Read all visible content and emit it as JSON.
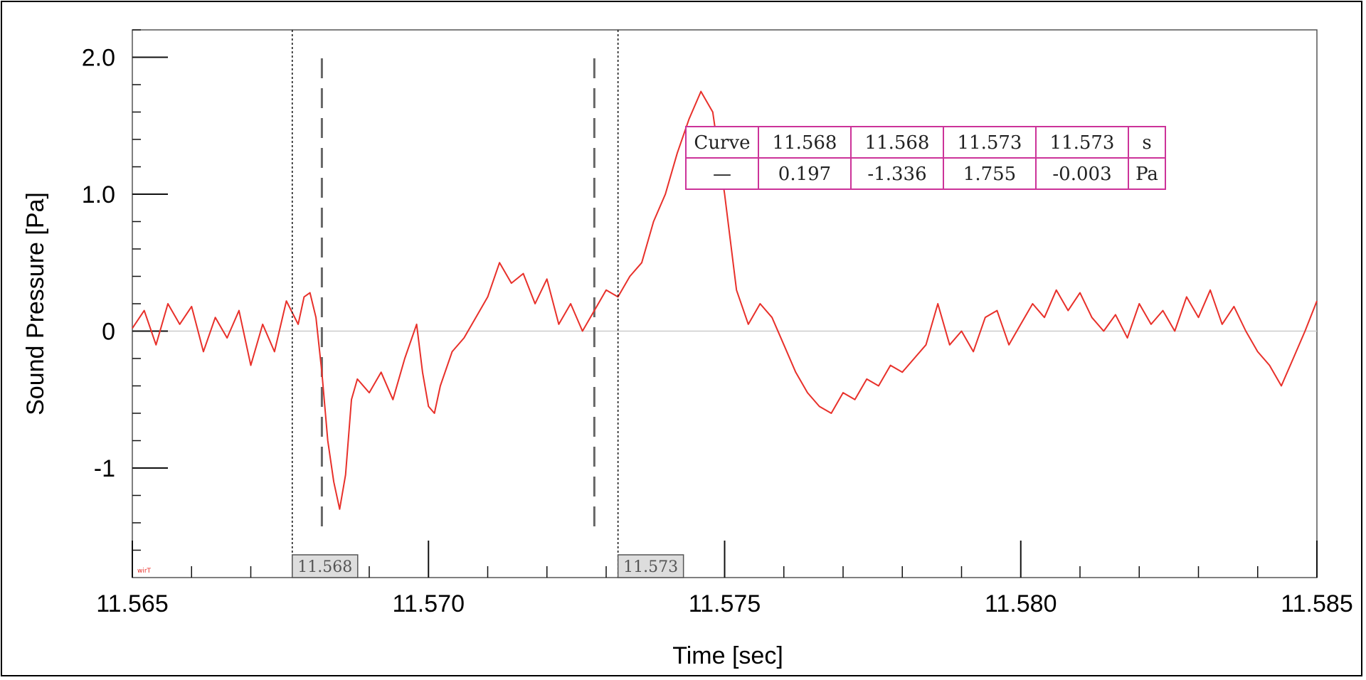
{
  "chart_data": {
    "type": "line",
    "title": "",
    "xlabel": "Time [sec]",
    "ylabel": "Sound Pressure [Pa]",
    "xlim": [
      11.565,
      11.585
    ],
    "ylim": [
      -1.8,
      2.2
    ],
    "x_tick_labels": [
      {
        "value": 11.565,
        "label": "11.565"
      },
      {
        "value": 11.57,
        "label": "11.570"
      },
      {
        "value": 11.575,
        "label": "11.575"
      },
      {
        "value": 11.58,
        "label": "11.580"
      },
      {
        "value": 11.585,
        "label": "11.585"
      }
    ],
    "y_tick_labels": [
      {
        "value": 2.0,
        "label": "2.0"
      },
      {
        "value": 1.0,
        "label": "1.0"
      },
      {
        "value": 0,
        "label": "0"
      },
      {
        "value": -1,
        "label": "-1"
      }
    ],
    "grid": false,
    "zero_line": true,
    "line_color": "#e8302a",
    "series": [
      {
        "color": "#e8302a",
        "points": [
          [
            11.565,
            0.02
          ],
          [
            11.5652,
            0.15
          ],
          [
            11.5654,
            -0.1
          ],
          [
            11.5656,
            0.2
          ],
          [
            11.5658,
            0.05
          ],
          [
            11.566,
            0.18
          ],
          [
            11.5662,
            -0.15
          ],
          [
            11.5664,
            0.1
          ],
          [
            11.5666,
            -0.05
          ],
          [
            11.5668,
            0.15
          ],
          [
            11.567,
            -0.25
          ],
          [
            11.5672,
            0.05
          ],
          [
            11.5674,
            -0.15
          ],
          [
            11.5676,
            0.22
          ],
          [
            11.5678,
            0.05
          ],
          [
            11.5679,
            0.25
          ],
          [
            11.568,
            0.28
          ],
          [
            11.5681,
            0.1
          ],
          [
            11.5682,
            -0.3
          ],
          [
            11.5683,
            -0.8
          ],
          [
            11.5684,
            -1.1
          ],
          [
            11.5685,
            -1.3
          ],
          [
            11.5686,
            -1.05
          ],
          [
            11.5687,
            -0.5
          ],
          [
            11.5688,
            -0.35
          ],
          [
            11.569,
            -0.45
          ],
          [
            11.5692,
            -0.3
          ],
          [
            11.5694,
            -0.5
          ],
          [
            11.5696,
            -0.2
          ],
          [
            11.5698,
            0.05
          ],
          [
            11.5699,
            -0.3
          ],
          [
            11.57,
            -0.55
          ],
          [
            11.5701,
            -0.6
          ],
          [
            11.5702,
            -0.4
          ],
          [
            11.5704,
            -0.15
          ],
          [
            11.5706,
            -0.05
          ],
          [
            11.5708,
            0.1
          ],
          [
            11.571,
            0.25
          ],
          [
            11.5712,
            0.5
          ],
          [
            11.5714,
            0.35
          ],
          [
            11.5716,
            0.42
          ],
          [
            11.5718,
            0.2
          ],
          [
            11.572,
            0.38
          ],
          [
            11.5722,
            0.05
          ],
          [
            11.5724,
            0.2
          ],
          [
            11.5726,
            0.0
          ],
          [
            11.5728,
            0.15
          ],
          [
            11.573,
            0.3
          ],
          [
            11.5732,
            0.25
          ],
          [
            11.5734,
            0.4
          ],
          [
            11.5736,
            0.5
          ],
          [
            11.5738,
            0.8
          ],
          [
            11.574,
            1.0
          ],
          [
            11.5742,
            1.3
          ],
          [
            11.5744,
            1.55
          ],
          [
            11.5746,
            1.75
          ],
          [
            11.5748,
            1.6
          ],
          [
            11.575,
            1.0
          ],
          [
            11.5752,
            0.3
          ],
          [
            11.5754,
            0.05
          ],
          [
            11.5756,
            0.2
          ],
          [
            11.5758,
            0.1
          ],
          [
            11.576,
            -0.1
          ],
          [
            11.5762,
            -0.3
          ],
          [
            11.5764,
            -0.45
          ],
          [
            11.5766,
            -0.55
          ],
          [
            11.5768,
            -0.6
          ],
          [
            11.577,
            -0.45
          ],
          [
            11.5772,
            -0.5
          ],
          [
            11.5774,
            -0.35
          ],
          [
            11.5776,
            -0.4
          ],
          [
            11.5778,
            -0.25
          ],
          [
            11.578,
            -0.3
          ],
          [
            11.5782,
            -0.2
          ],
          [
            11.5784,
            -0.1
          ],
          [
            11.5786,
            0.2
          ],
          [
            11.5788,
            -0.1
          ],
          [
            11.579,
            0.0
          ],
          [
            11.5792,
            -0.15
          ],
          [
            11.5794,
            0.1
          ],
          [
            11.5796,
            0.15
          ],
          [
            11.5798,
            -0.1
          ],
          [
            11.58,
            0.05
          ],
          [
            11.5802,
            0.2
          ],
          [
            11.5804,
            0.1
          ],
          [
            11.5806,
            0.3
          ],
          [
            11.5808,
            0.15
          ],
          [
            11.581,
            0.28
          ],
          [
            11.5812,
            0.1
          ],
          [
            11.5814,
            0.0
          ],
          [
            11.5816,
            0.12
          ],
          [
            11.5818,
            -0.05
          ],
          [
            11.582,
            0.2
          ],
          [
            11.5822,
            0.05
          ],
          [
            11.5824,
            0.15
          ],
          [
            11.5826,
            0.0
          ],
          [
            11.5828,
            0.25
          ],
          [
            11.583,
            0.1
          ],
          [
            11.5832,
            0.3
          ],
          [
            11.5834,
            0.05
          ],
          [
            11.5836,
            0.18
          ],
          [
            11.5838,
            0.0
          ],
          [
            11.584,
            -0.15
          ],
          [
            11.5842,
            -0.25
          ],
          [
            11.5844,
            -0.4
          ],
          [
            11.5846,
            -0.2
          ],
          [
            11.5848,
            0.0
          ],
          [
            11.585,
            0.22
          ]
        ]
      }
    ],
    "reference_markers": [
      {
        "x": 11.5682,
        "style": "dashed"
      },
      {
        "x": 11.5728,
        "style": "dashed"
      }
    ],
    "cursors": [
      {
        "x": 11.5677,
        "label": "11.568"
      },
      {
        "x": 11.5732,
        "label": "11.573"
      }
    ],
    "readout_table": {
      "rows": [
        [
          "Curve",
          "11.568",
          "11.568",
          "11.573",
          "11.573",
          "s"
        ],
        [
          "—",
          "0.197",
          "-1.336",
          "1.755",
          "-0.003",
          "Pa"
        ]
      ],
      "border_color": "#cc3399"
    },
    "corner_tag": "wirT"
  }
}
